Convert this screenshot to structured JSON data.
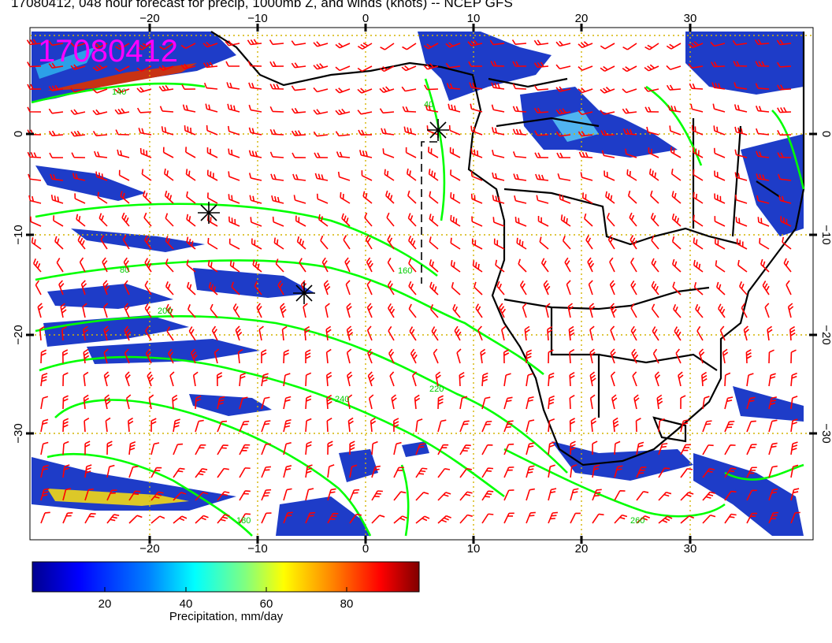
{
  "map": {
    "title": "17080412, 048 hour forecast for precip, 1000mb Z, and winds (knots) -- NCEP GFS",
    "stamp": "17080412",
    "lon_ticks": [
      "−20",
      "−10",
      "0",
      "10",
      "20",
      "30"
    ],
    "lat_ticks": [
      "0",
      "−10",
      "−20",
      "−30"
    ],
    "contour_labels": [
      "140",
      "40",
      "80",
      "160",
      "200",
      "220",
      "240",
      "260",
      "180"
    ],
    "colors": {
      "wind_barbs": "#ff0000",
      "contours": "#00ff00",
      "coast": "#000000",
      "grid": "#d4b400",
      "stamp": "#ff00ff"
    },
    "legend": {
      "title": "Precipitation, mm/day",
      "ticks": [
        "20",
        "40",
        "60",
        "80"
      ]
    }
  }
}
